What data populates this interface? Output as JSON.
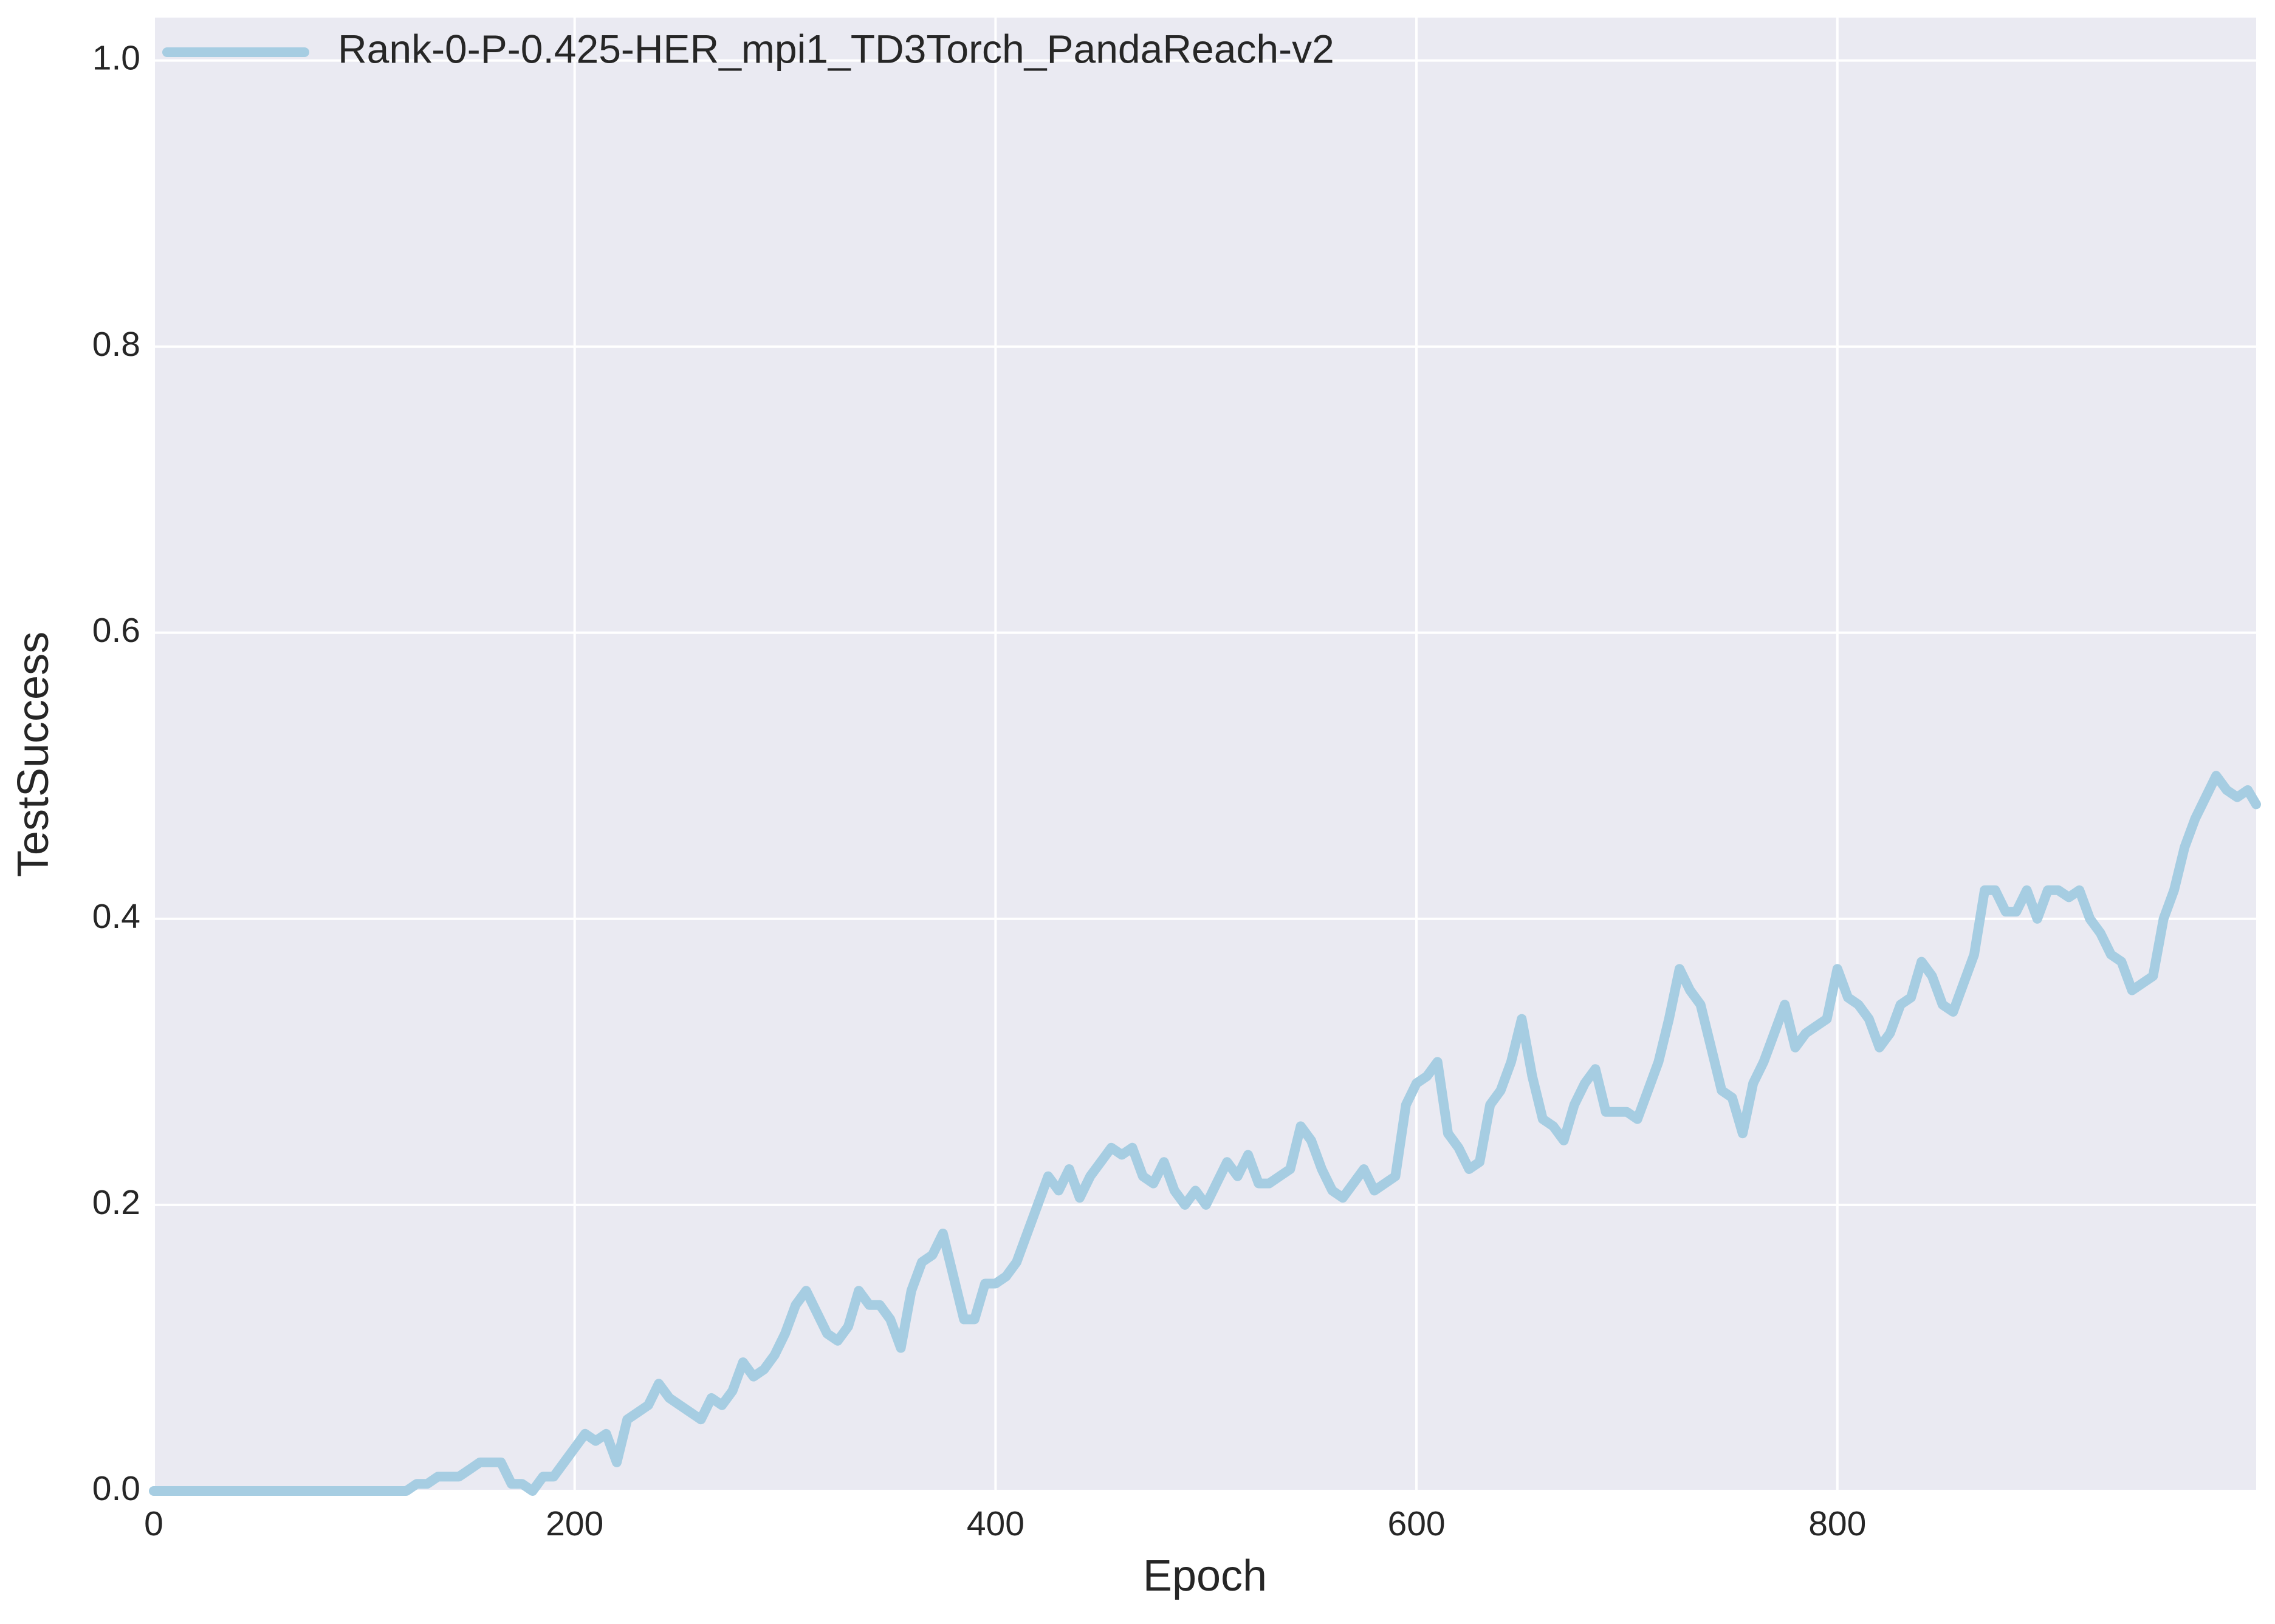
{
  "chart_data": {
    "type": "line",
    "x_label": "Epoch",
    "y_label": "TestSuccess",
    "x": [
      0,
      5,
      10,
      15,
      20,
      25,
      30,
      35,
      40,
      45,
      50,
      55,
      60,
      65,
      70,
      75,
      80,
      85,
      90,
      95,
      100,
      105,
      110,
      115,
      120,
      125,
      130,
      135,
      140,
      145,
      150,
      155,
      160,
      165,
      170,
      175,
      180,
      185,
      190,
      195,
      200,
      205,
      210,
      215,
      220,
      225,
      230,
      235,
      240,
      245,
      250,
      255,
      260,
      265,
      270,
      275,
      280,
      285,
      290,
      295,
      300,
      305,
      310,
      315,
      320,
      325,
      330,
      335,
      340,
      345,
      350,
      355,
      360,
      365,
      370,
      375,
      380,
      385,
      390,
      395,
      400,
      405,
      410,
      415,
      420,
      425,
      430,
      435,
      440,
      445,
      450,
      455,
      460,
      465,
      470,
      475,
      480,
      485,
      490,
      495,
      500,
      505,
      510,
      515,
      520,
      525,
      530,
      535,
      540,
      545,
      550,
      555,
      560,
      565,
      570,
      575,
      580,
      585,
      590,
      595,
      600,
      605,
      610,
      615,
      620,
      625,
      630,
      635,
      640,
      645,
      650,
      655,
      660,
      665,
      670,
      675,
      680,
      685,
      690,
      695,
      700,
      705,
      710,
      715,
      720,
      725,
      730,
      735,
      740,
      745,
      750,
      755,
      760,
      765,
      770,
      775,
      780,
      785,
      790,
      795,
      800,
      805,
      810,
      815,
      820,
      825,
      830,
      835,
      840,
      845,
      850,
      855,
      860,
      865,
      870,
      875,
      880,
      885,
      890,
      895,
      900,
      905,
      910,
      915,
      920,
      925,
      930,
      935,
      940,
      945,
      950,
      955,
      960,
      965,
      970,
      975,
      980,
      985,
      990,
      995,
      999
    ],
    "series": [
      {
        "name": "Rank-0-P-0.425-HER_mpi1_TD3Torch_PandaReach-v2",
        "color": "#a6cde2",
        "values": [
          0,
          0,
          0,
          0,
          0,
          0,
          0,
          0,
          0,
          0,
          0,
          0,
          0,
          0,
          0,
          0,
          0,
          0,
          0,
          0,
          0,
          0,
          0,
          0,
          0,
          0.005,
          0.005,
          0.01,
          0.01,
          0.01,
          0.015,
          0.02,
          0.02,
          0.02,
          0.005,
          0.005,
          0,
          0.01,
          0.01,
          0.02,
          0.03,
          0.04,
          0.035,
          0.04,
          0.02,
          0.05,
          0.055,
          0.06,
          0.075,
          0.065,
          0.06,
          0.055,
          0.05,
          0.065,
          0.06,
          0.07,
          0.09,
          0.08,
          0.085,
          0.095,
          0.11,
          0.13,
          0.14,
          0.125,
          0.11,
          0.105,
          0.115,
          0.14,
          0.13,
          0.13,
          0.12,
          0.1,
          0.14,
          0.16,
          0.165,
          0.18,
          0.15,
          0.12,
          0.12,
          0.145,
          0.145,
          0.15,
          0.16,
          0.18,
          0.2,
          0.22,
          0.21,
          0.225,
          0.205,
          0.22,
          0.23,
          0.24,
          0.235,
          0.24,
          0.22,
          0.215,
          0.23,
          0.21,
          0.2,
          0.21,
          0.2,
          0.215,
          0.23,
          0.22,
          0.235,
          0.215,
          0.215,
          0.22,
          0.225,
          0.255,
          0.245,
          0.225,
          0.21,
          0.205,
          0.215,
          0.225,
          0.21,
          0.215,
          0.22,
          0.27,
          0.285,
          0.29,
          0.3,
          0.25,
          0.24,
          0.225,
          0.23,
          0.27,
          0.28,
          0.3,
          0.33,
          0.29,
          0.26,
          0.255,
          0.245,
          0.27,
          0.285,
          0.295,
          0.265,
          0.265,
          0.265,
          0.26,
          0.28,
          0.3,
          0.33,
          0.365,
          0.35,
          0.34,
          0.31,
          0.28,
          0.275,
          0.25,
          0.285,
          0.3,
          0.32,
          0.34,
          0.31,
          0.32,
          0.325,
          0.33,
          0.365,
          0.345,
          0.34,
          0.33,
          0.31,
          0.32,
          0.34,
          0.345,
          0.37,
          0.36,
          0.34,
          0.335,
          0.355,
          0.375,
          0.42,
          0.42,
          0.405,
          0.405,
          0.42,
          0.4,
          0.42,
          0.42,
          0.415,
          0.42,
          0.4,
          0.39,
          0.375,
          0.37,
          0.35,
          0.355,
          0.36,
          0.4,
          0.42,
          0.45,
          0.47,
          0.485,
          0.5,
          0.49,
          0.485,
          0.49,
          0.48
        ]
      }
    ],
    "xlim": [
      0,
      999
    ],
    "ylim": [
      0,
      1.03
    ],
    "xticks": [
      0,
      200,
      400,
      600,
      800
    ],
    "yticks": [
      {
        "value": 0,
        "label": "0.0"
      },
      {
        "value": 0.2,
        "label": "0.2"
      },
      {
        "value": 0.4,
        "label": "0.4"
      },
      {
        "value": 0.6,
        "label": "0.6"
      },
      {
        "value": 0.8,
        "label": "0.8"
      },
      {
        "value": 1,
        "label": "1.0"
      }
    ],
    "grid": true,
    "legend": "upper left"
  }
}
